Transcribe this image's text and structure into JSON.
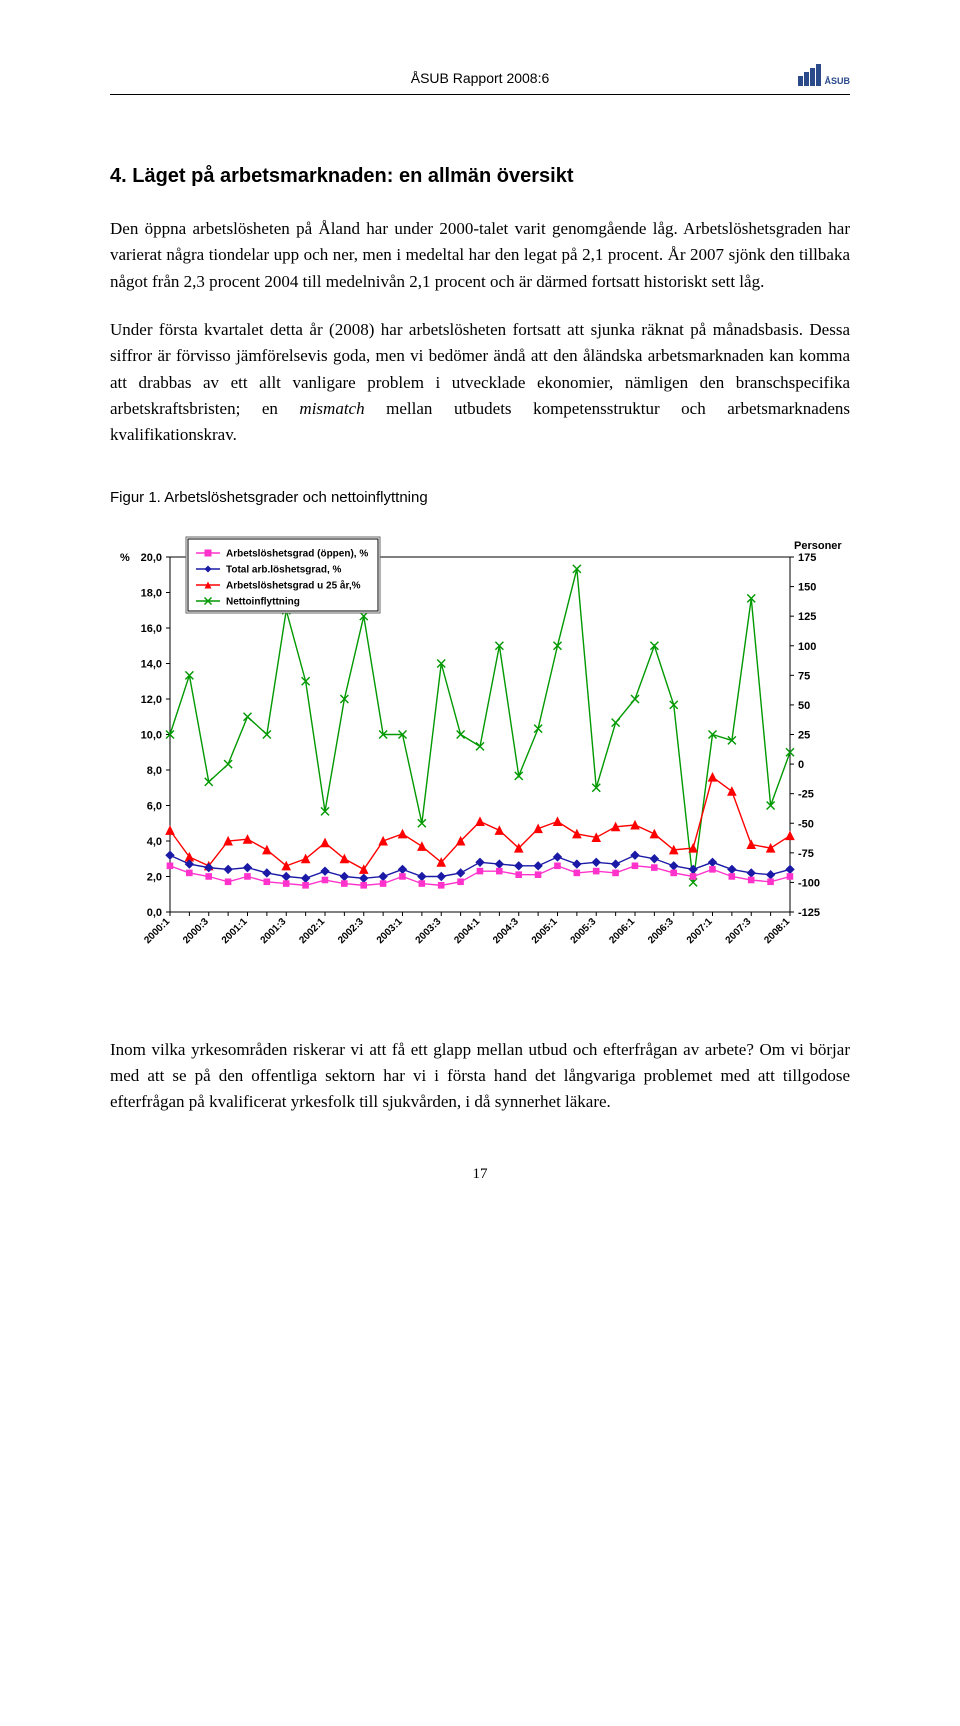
{
  "header": {
    "report_title": "ÅSUB Rapport 2008:6",
    "logo_text": "ÅSUB",
    "logo_color": "#2a4a8a"
  },
  "section": {
    "heading": "4. Läget på arbetsmarknaden: en allmän översikt"
  },
  "paragraphs": {
    "p1": "Den öppna arbetslösheten på Åland har under 2000-talet varit genomgående låg. Arbetslöshetsgraden har varierat några tiondelar upp och ner, men i medeltal har den legat på 2,1 procent. År 2007 sjönk den tillbaka något från 2,3 procent 2004 till medelnivån 2,1 procent och är därmed fortsatt historiskt sett låg.",
    "p2_a": "Under första kvartalet detta år (2008) har arbetslösheten fortsatt att sjunka räknat på månadsbasis. Dessa siffror är förvisso jämförelsevis goda, men vi bedömer ändå att den åländska arbetsmarknaden kan komma att drabbas av ett allt vanligare problem i utvecklade ekonomier, nämligen den branschspecifika arbetskraftsbristen; en ",
    "p2_em": "mismatch",
    "p2_b": " mellan utbudets kompetensstruktur och arbetsmarknadens kvalifikationskrav.",
    "p3": "Inom vilka yrkesområden riskerar vi att få ett glapp mellan utbud och efterfrågan av arbete? Om vi börjar med att se på den offentliga sektorn har vi i första hand det långvariga problemet med att tillgodose efterfrågan på kvalificerat yrkesfolk till sjukvården, i då synnerhet läkare."
  },
  "figure": {
    "caption": "Figur 1. Arbetslöshetsgrader och nettoinflyttning",
    "legend": {
      "s1": "Arbetslöshetsgrad (öppen), %",
      "s2": "Total arb.löshetsgrad, %",
      "s3": "Arbetslöshetsgrad u 25 år,%",
      "s4": "Nettoinflyttning"
    },
    "y_left": {
      "label": "%",
      "min": 0,
      "max": 20,
      "step": 2,
      "ticks": [
        "0,0",
        "2,0",
        "4,0",
        "6,0",
        "8,0",
        "10,0",
        "12,0",
        "14,0",
        "16,0",
        "18,0",
        "20,0"
      ]
    },
    "y_right": {
      "label": "Personer",
      "min": -125,
      "max": 175,
      "step": 25,
      "ticks": [
        "-125",
        "-100",
        "-75",
        "-50",
        "-25",
        "0",
        "25",
        "50",
        "75",
        "100",
        "125",
        "150",
        "175"
      ]
    },
    "x": {
      "labels": [
        "2000:1",
        "2000:3",
        "2001:1",
        "2001:3",
        "2002:1",
        "2002:3",
        "2003:1",
        "2003:3",
        "2004:1",
        "2004:3",
        "2005:1",
        "2005:3",
        "2006:1",
        "2006:3",
        "2007:1",
        "2007:3",
        "2008:1"
      ]
    },
    "x_all_count": 33,
    "colors": {
      "s1_pink": "#ff33cc",
      "s2_blue": "#1a1aa6",
      "s3_red": "#ff0000",
      "s4_green": "#009900",
      "grid": "#000000",
      "legend_border": "#000000",
      "legend_bg": "#ffffff",
      "plot_bg": "#ffffff"
    },
    "line_width": 1.4,
    "marker_size": 4,
    "series": {
      "s1_values": [
        2.6,
        2.2,
        2.0,
        1.7,
        2.0,
        1.7,
        1.6,
        1.5,
        1.8,
        1.6,
        1.5,
        1.6,
        2.0,
        1.6,
        1.5,
        1.7,
        2.3,
        2.3,
        2.1,
        2.1,
        2.6,
        2.2,
        2.3,
        2.2,
        2.6,
        2.5,
        2.2,
        2.0,
        2.4,
        2.0,
        1.8,
        1.7,
        2.0
      ],
      "s2_values": [
        3.2,
        2.7,
        2.5,
        2.4,
        2.5,
        2.2,
        2.0,
        1.9,
        2.3,
        2.0,
        1.9,
        2.0,
        2.4,
        2.0,
        2.0,
        2.2,
        2.8,
        2.7,
        2.6,
        2.6,
        3.1,
        2.7,
        2.8,
        2.7,
        3.2,
        3.0,
        2.6,
        2.4,
        2.8,
        2.4,
        2.2,
        2.1,
        2.4
      ],
      "s3_values": [
        4.6,
        3.1,
        2.6,
        4.0,
        4.1,
        3.5,
        2.6,
        3.0,
        3.9,
        3.0,
        2.4,
        4.0,
        4.4,
        3.7,
        2.8,
        4.0,
        5.1,
        4.6,
        3.6,
        4.7,
        5.1,
        4.4,
        4.2,
        4.8,
        4.9,
        4.4,
        3.5,
        3.6,
        7.6,
        6.8,
        3.8,
        3.6,
        4.3
      ],
      "s4_values": [
        25,
        75,
        -15,
        0,
        40,
        25,
        130,
        70,
        -40,
        55,
        125,
        25,
        25,
        -50,
        85,
        25,
        15,
        100,
        -10,
        30,
        100,
        165,
        -20,
        35,
        55,
        100,
        50,
        -100,
        25,
        20,
        140,
        -35,
        10
      ]
    },
    "legend_fontsize": 10,
    "axis_fontsize": 11
  },
  "page_number": "17"
}
